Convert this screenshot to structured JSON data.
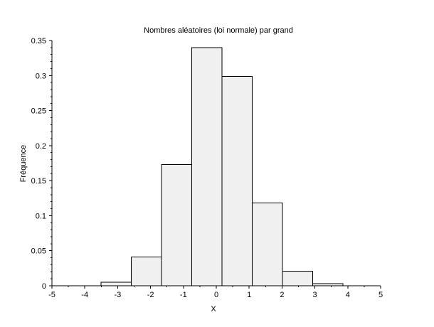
{
  "chart_data": {
    "type": "bar",
    "subtype": "histogram",
    "title": "Nombres aléatoires (loi normale) par grand",
    "xlabel": "X",
    "ylabel": "Fréquence",
    "xlim": [
      -5,
      5
    ],
    "ylim": [
      0,
      0.35
    ],
    "grid": false,
    "legend": null,
    "x_major_ticks": [
      -5,
      -4,
      -3,
      -2,
      -1,
      0,
      1,
      2,
      3,
      4,
      5
    ],
    "x_tick_labels": [
      "-5",
      "-4",
      "-3",
      "-2",
      "-1",
      "0",
      "1",
      "2",
      "3",
      "4",
      "5"
    ],
    "x_minor_step": 0.5,
    "y_major_ticks": [
      0,
      0.05,
      0.1,
      0.15,
      0.2,
      0.25,
      0.3,
      0.35
    ],
    "y_tick_labels": [
      "0",
      "0.05",
      "0.1",
      "0.15",
      "0.2",
      "0.25",
      "0.3",
      "0.35"
    ],
    "y_minor_step": 0.01,
    "bin_edges": [
      -3.51,
      -2.59,
      -1.67,
      -0.75,
      0.17,
      1.09,
      2.01,
      2.93,
      3.85
    ],
    "frequencies": [
      0.005,
      0.041,
      0.173,
      0.34,
      0.299,
      0.118,
      0.021,
      0.003
    ],
    "bar_fill": "#f0f0f0",
    "bar_stroke": "#000000",
    "axis_color": "#000000",
    "background": "#ffffff"
  }
}
